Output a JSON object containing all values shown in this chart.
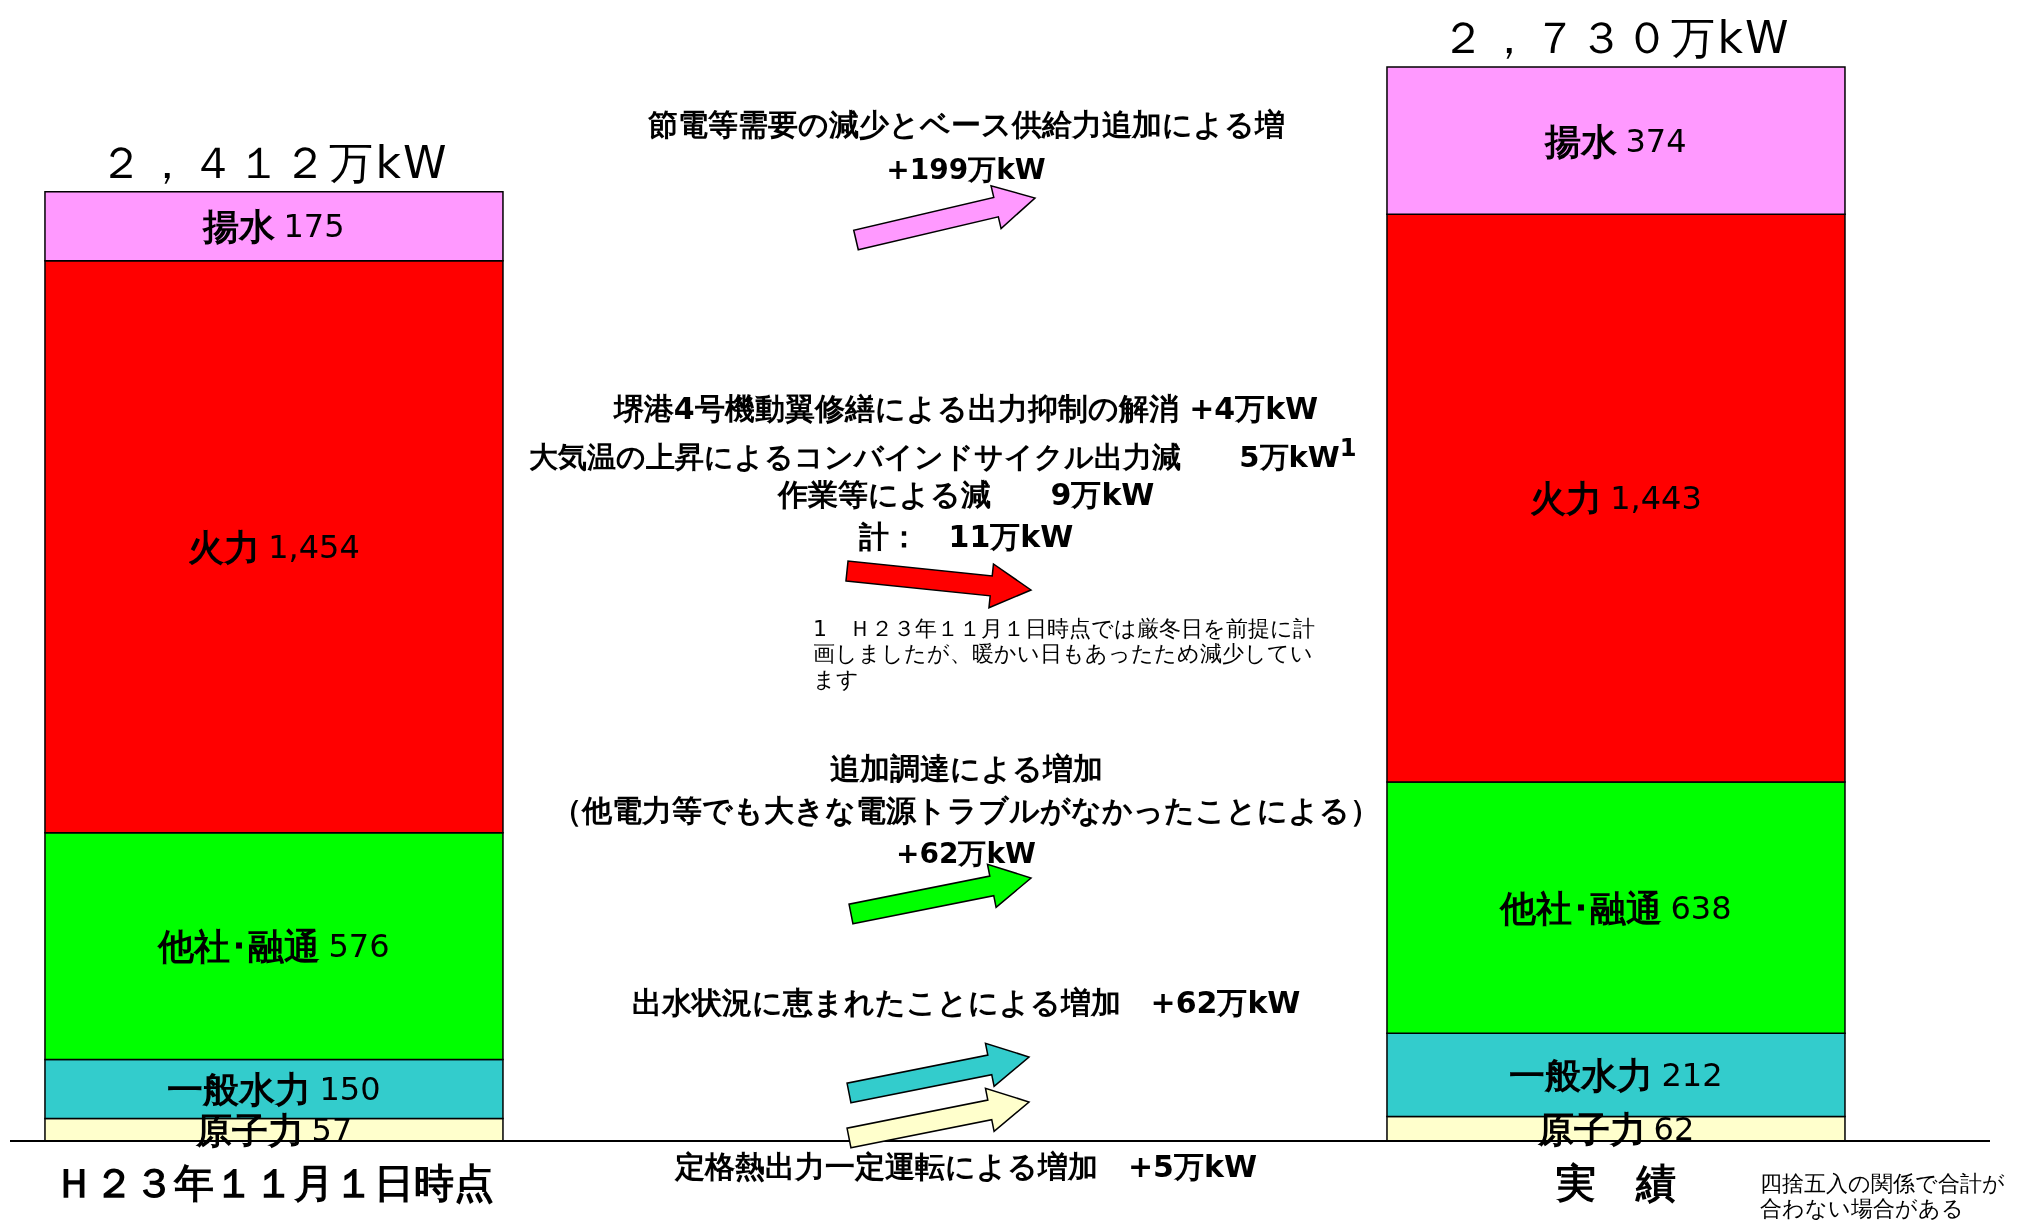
{
  "chart_data": {
    "type": "bar",
    "stacked": true,
    "categories": [
      "Ｈ２３年１１月１日時点",
      "実　績"
    ],
    "series": [
      {
        "name": "原子力",
        "color": "#ffffcc",
        "values": [
          57,
          62
        ],
        "value_labels": [
          "57",
          "62"
        ]
      },
      {
        "name": "一般水力",
        "color": "#33cccc",
        "values": [
          150,
          212
        ],
        "value_labels": [
          "150",
          "212"
        ]
      },
      {
        "name": "他社･融通",
        "color": "#00ff00",
        "values": [
          576,
          638
        ],
        "value_labels": [
          "576",
          "638"
        ]
      },
      {
        "name": "火力",
        "color": "#ff0000",
        "values": [
          1454,
          1443
        ],
        "value_labels": [
          "1,454",
          "1,443"
        ]
      },
      {
        "name": "揚水",
        "color": "#ff99ff",
        "values": [
          175,
          374
        ],
        "value_labels": [
          "175",
          "374"
        ]
      }
    ],
    "totals": [
      "２，４１２万kW",
      "２，７３０万kW"
    ],
    "annotations": [
      "節電等需要の減少とベース供給力追加による増",
      "+199万kW",
      "堺港4号機動翼修繕による出力抑制の解消 +4万kW",
      "大気温の上昇によるコンバインドサイクル出力減　　5万kW$^{1}$",
      "作業等による減　　9万kW",
      "計：　11万kW",
      "1　Ｈ２３年１１月１日時点では厳冬日を前提に計画しましたが、暖かい日もあったため減少しています",
      "追加調達による増加",
      "（他電力等でも大きな電源トラブルがなかったことによる）",
      "+62万kW",
      "出水状況に恵まれたことによる増加　+62万kW",
      "定格熱出力一定運転による増加　+5万kW",
      "四捨五入の関係で合計が合わない場合がある"
    ]
  }
}
